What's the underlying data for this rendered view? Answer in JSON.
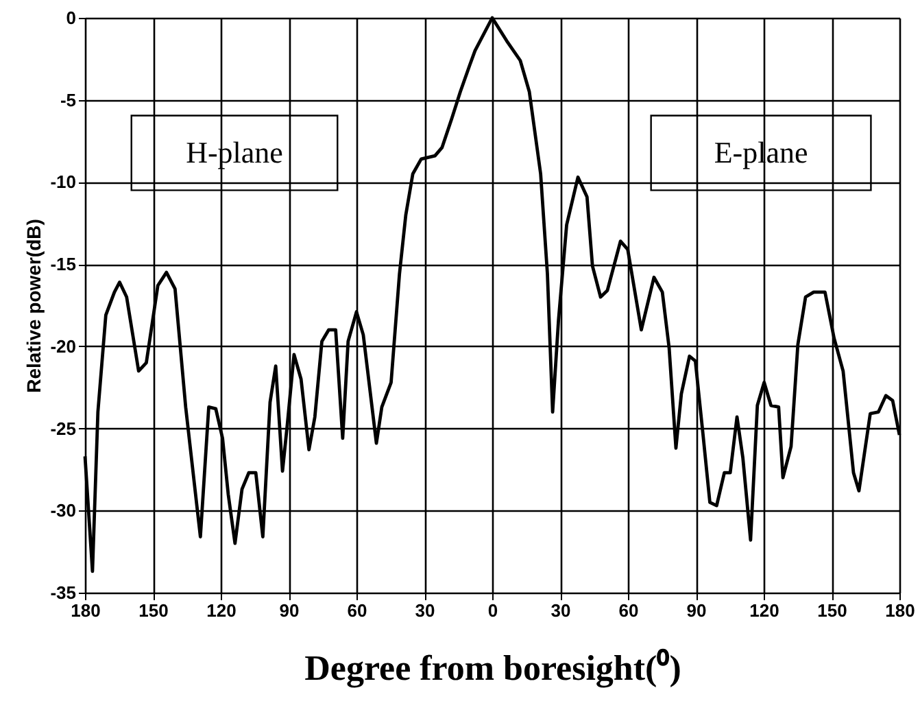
{
  "chart_data": {
    "type": "line",
    "xlabel": "Degree from boresight(⁰)",
    "ylabel": "Relative power(dB)",
    "annotations": [
      "H-plane",
      "E-plane"
    ],
    "x": [
      -180,
      -176.7,
      -174.3,
      -170.8,
      -167,
      -164.7,
      -161.6,
      -156.3,
      -152.9,
      -147.8,
      -144,
      -140.2,
      -135.5,
      -129,
      -125.3,
      -122.2,
      -119.2,
      -116.7,
      -113.7,
      -110.6,
      -107.6,
      -104.5,
      -101.4,
      -98.2,
      -95.7,
      -92.7,
      -90.6,
      -87.6,
      -84.5,
      -81,
      -78.4,
      -75.3,
      -72.3,
      -69.2,
      -66.1,
      -63.7,
      -60,
      -57,
      -51.2,
      -48.8,
      -44.7,
      -41,
      -38.2,
      -35.1,
      -31.4,
      -25.3,
      -22.2,
      -17.8,
      -14.1,
      -10,
      -7.6,
      0,
      6.4,
      12.4,
      16.4,
      21.4,
      24.4,
      26.7,
      29.3,
      32.9,
      37.9,
      41.9,
      44.3,
      47.9,
      50.9,
      56.7,
      59.9,
      65.9,
      71.5,
      75.2,
      78.2,
      81.2,
      83.6,
      87.2,
      89.8,
      93.2,
      96.2,
      99.2,
      102.6,
      105.2,
      108.2,
      110.8,
      114.2,
      117.2,
      120.2,
      123.2,
      126.6,
      128.5,
      132.1,
      135.1,
      138.5,
      142.1,
      147.1,
      151.1,
      155.1,
      159.7,
      162.1,
      167.1,
      170.7,
      174,
      177,
      180
    ],
    "series": [
      {
        "color": "#000000",
        "values": [
          -26.7,
          -33.7,
          -24,
          -18.1,
          -16.7,
          -16.1,
          -17,
          -21.5,
          -21,
          -16.3,
          -15.5,
          -16.5,
          -23.7,
          -31.6,
          -23.7,
          -23.8,
          -25.6,
          -29,
          -32,
          -28.7,
          -27.7,
          -27.7,
          -31.6,
          -23.4,
          -21.2,
          -27.6,
          -24.8,
          -20.5,
          -22,
          -26.3,
          -24.3,
          -19.7,
          -19,
          -19,
          -25.6,
          -19.7,
          -17.9,
          -19.3,
          -25.9,
          -23.7,
          -22.2,
          -15.6,
          -12,
          -9.5,
          -8.6,
          -8.4,
          -7.9,
          -6.1,
          -4.5,
          -2.9,
          -2,
          0,
          -1.4,
          -2.6,
          -4.5,
          -9.5,
          -15.6,
          -24,
          -18.4,
          -12.6,
          -9.7,
          -10.9,
          -15.1,
          -17,
          -16.6,
          -13.6,
          -14.1,
          -19,
          -15.8,
          -16.7,
          -20.1,
          -26.2,
          -22.9,
          -20.6,
          -20.9,
          -25.4,
          -29.5,
          -29.7,
          -27.7,
          -27.7,
          -24.3,
          -26.8,
          -31.8,
          -23.6,
          -22.2,
          -23.6,
          -23.7,
          -28,
          -26.1,
          -19.9,
          -17,
          -16.7,
          -16.7,
          -19.5,
          -21.5,
          -27.7,
          -28.8,
          -24.1,
          -24,
          -23,
          -23.3,
          -25.4
        ]
      }
    ],
    "xlim": [
      -180,
      180
    ],
    "xticks": [
      {
        "value": -180,
        "label": "180"
      },
      {
        "value": -150,
        "label": "150"
      },
      {
        "value": -120,
        "label": "120"
      },
      {
        "value": -90,
        "label": "90"
      },
      {
        "value": -60,
        "label": "60"
      },
      {
        "value": -30,
        "label": "30"
      },
      0,
      30,
      60,
      90,
      120,
      150,
      180
    ],
    "ylim": [
      -35,
      0
    ],
    "yticks": [
      -35,
      -30,
      -25,
      -20,
      -15,
      -10,
      -5,
      0
    ],
    "grid": true,
    "marker": "none",
    "line_style": "solid"
  }
}
